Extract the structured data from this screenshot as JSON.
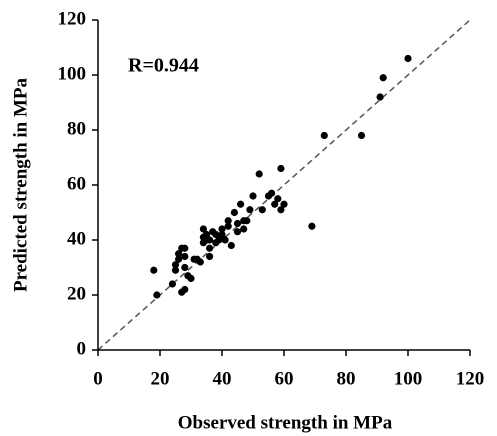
{
  "chart_data": {
    "type": "scatter",
    "x_label": "Observed strength in MPa",
    "y_label": "Predicted strength in MPa",
    "annotation": "R=0.944",
    "color": "#000000",
    "xlim": [
      0,
      120
    ],
    "ylim": [
      0,
      120
    ],
    "xticks": [
      0,
      20,
      40,
      60,
      80,
      100,
      120
    ],
    "yticks": [
      0,
      20,
      40,
      60,
      80,
      100,
      120
    ],
    "x": [
      18,
      19,
      24,
      25,
      25,
      26,
      26,
      27,
      27,
      28,
      28,
      28,
      28,
      29,
      30,
      31,
      32,
      33,
      34,
      34,
      34,
      35,
      35,
      36,
      36,
      36,
      37,
      38,
      38,
      39,
      40,
      40,
      41,
      42,
      42,
      43,
      44,
      45,
      45,
      46,
      47,
      47,
      48,
      49,
      50,
      52,
      53,
      55,
      56,
      57,
      58,
      59,
      59,
      60,
      69,
      73,
      85,
      91,
      92,
      100
    ],
    "values": [
      29,
      20,
      24,
      29,
      31,
      33,
      35,
      21,
      37,
      22,
      30,
      34,
      37,
      27,
      26,
      33,
      33,
      32,
      39,
      41,
      44,
      40,
      42,
      34,
      37,
      40,
      43,
      42,
      39,
      40,
      44,
      42,
      40,
      45,
      47,
      38,
      50,
      43,
      46,
      53,
      47,
      44,
      47,
      51,
      56,
      64,
      51,
      56,
      57,
      53,
      55,
      66,
      51,
      53,
      45,
      78,
      78,
      92,
      99,
      106
    ]
  }
}
